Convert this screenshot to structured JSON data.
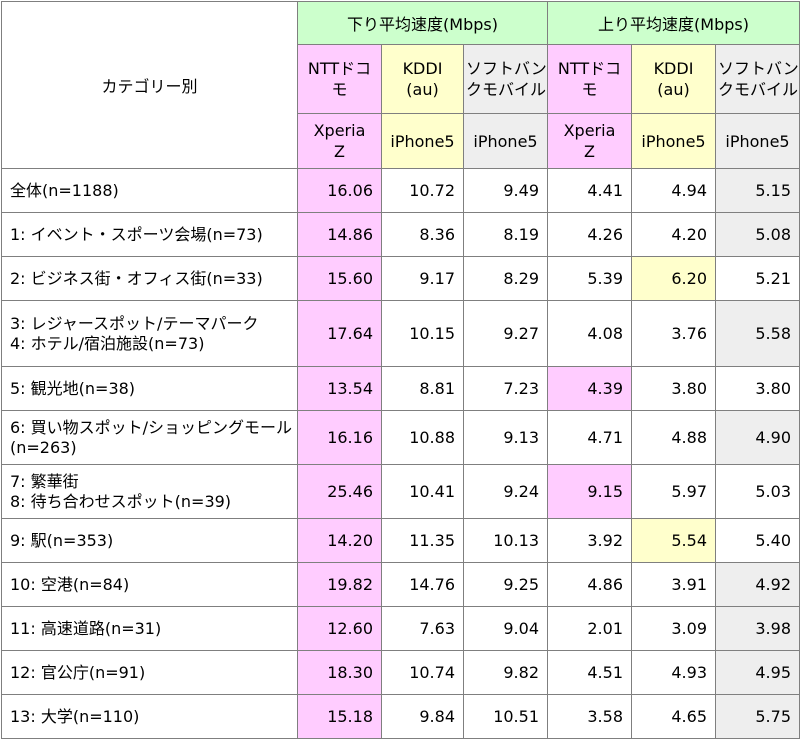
{
  "header": {
    "category_label": "カテゴリー別",
    "groups": [
      "下り平均速度(Mbps)",
      "上り平均速度(Mbps)"
    ],
    "carriers": [
      [
        "NTTドコ",
        "モ"
      ],
      [
        "KDDI",
        "(au)"
      ],
      [
        "ソフトバン",
        "クモバイル"
      ],
      [
        "NTTドコ",
        "モ"
      ],
      [
        "KDDI",
        "(au)"
      ],
      [
        "ソフトバン",
        "クモバイル"
      ]
    ],
    "devices": [
      [
        "Xperia",
        "Z"
      ],
      [
        "iPhone5"
      ],
      [
        "iPhone5"
      ],
      [
        "Xperia",
        "Z"
      ],
      [
        "iPhone5"
      ],
      [
        "iPhone5"
      ]
    ]
  },
  "rows": [
    {
      "label": [
        "全体(n=1188)"
      ],
      "values": [
        "16.06",
        "10.72",
        "9.49",
        "4.41",
        "4.94",
        "5.15"
      ],
      "hl": [
        "pink",
        "",
        "",
        "",
        "",
        "gray"
      ]
    },
    {
      "label": [
        "1: イベント・スポーツ会場(n=73)"
      ],
      "values": [
        "14.86",
        "8.36",
        "8.19",
        "4.26",
        "4.20",
        "5.08"
      ],
      "hl": [
        "pink",
        "",
        "",
        "",
        "",
        "gray"
      ]
    },
    {
      "label": [
        "2: ビジネス街・オフィス街(n=33)"
      ],
      "values": [
        "15.60",
        "9.17",
        "8.29",
        "5.39",
        "6.20",
        "5.21"
      ],
      "hl": [
        "pink",
        "",
        "",
        "",
        "yellow",
        ""
      ]
    },
    {
      "label": [
        "3: レジャースポット/テーマパーク",
        "4: ホテル/宿泊施設(n=73)"
      ],
      "values": [
        "17.64",
        "10.15",
        "9.27",
        "4.08",
        "3.76",
        "5.58"
      ],
      "hl": [
        "pink",
        "",
        "",
        "",
        "",
        "gray"
      ]
    },
    {
      "label": [
        "5: 観光地(n=38)"
      ],
      "values": [
        "13.54",
        "8.81",
        "7.23",
        "4.39",
        "3.80",
        "3.80"
      ],
      "hl": [
        "pink",
        "",
        "",
        "pink",
        "",
        ""
      ]
    },
    {
      "label": [
        "6: 買い物スポット/ショッピングモール",
        "(n=263)"
      ],
      "values": [
        "16.16",
        "10.88",
        "9.13",
        "4.71",
        "4.88",
        "4.90"
      ],
      "hl": [
        "pink",
        "",
        "",
        "",
        "",
        "gray"
      ]
    },
    {
      "label": [
        "7: 繁華街",
        "8: 待ち合わせスポット(n=39)"
      ],
      "values": [
        "25.46",
        "10.41",
        "9.24",
        "9.15",
        "5.97",
        "5.03"
      ],
      "hl": [
        "pink",
        "",
        "",
        "pink",
        "",
        ""
      ]
    },
    {
      "label": [
        "9: 駅(n=353)"
      ],
      "values": [
        "14.20",
        "11.35",
        "10.13",
        "3.92",
        "5.54",
        "5.40"
      ],
      "hl": [
        "pink",
        "",
        "",
        "",
        "yellow",
        ""
      ]
    },
    {
      "label": [
        "10: 空港(n=84)"
      ],
      "values": [
        "19.82",
        "14.76",
        "9.25",
        "4.86",
        "3.91",
        "4.92"
      ],
      "hl": [
        "pink",
        "",
        "",
        "",
        "",
        "gray"
      ]
    },
    {
      "label": [
        "11: 高速道路(n=31)"
      ],
      "values": [
        "12.60",
        "7.63",
        "9.04",
        "2.01",
        "3.09",
        "3.98"
      ],
      "hl": [
        "pink",
        "",
        "",
        "",
        "",
        "gray"
      ]
    },
    {
      "label": [
        "12: 官公庁(n=91)"
      ],
      "values": [
        "18.30",
        "10.74",
        "9.82",
        "4.51",
        "4.93",
        "4.95"
      ],
      "hl": [
        "pink",
        "",
        "",
        "",
        "",
        "gray"
      ]
    },
    {
      "label": [
        "13: 大学(n=110)"
      ],
      "values": [
        "15.18",
        "9.84",
        "10.51",
        "3.58",
        "4.65",
        "5.75"
      ],
      "hl": [
        "pink",
        "",
        "",
        "",
        "",
        "gray"
      ]
    }
  ],
  "colors": {
    "pink": "#ffccff",
    "yellow": "#ffffcc",
    "gray": "#eeeeee",
    "green": "#ccffcc",
    "border": "#7f7f7f"
  }
}
